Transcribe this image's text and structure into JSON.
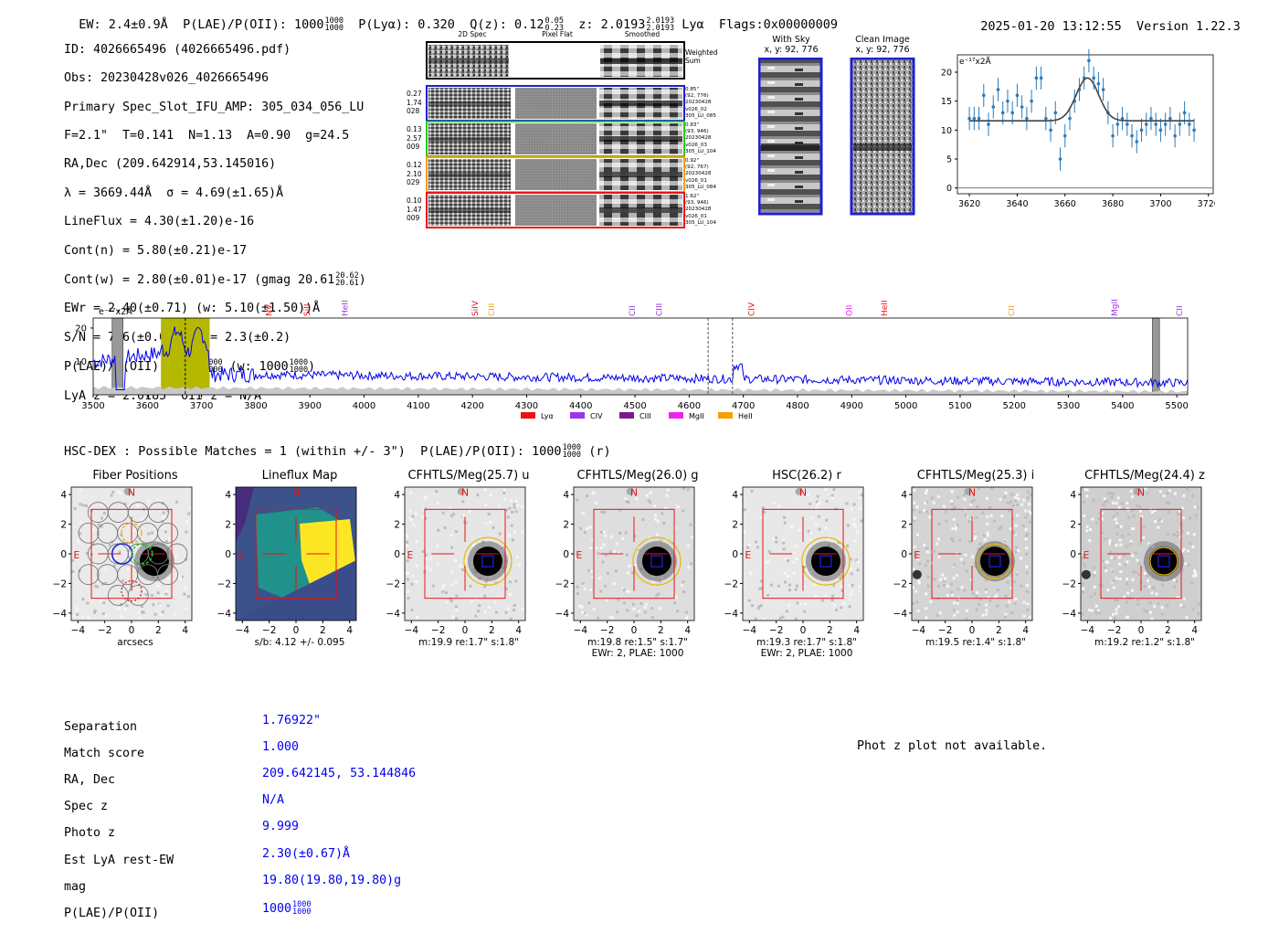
{
  "header": {
    "ew": "EW: 2.4±0.9Å",
    "plae_label": "P(LAE)/P(OII): 1000",
    "plae_sup": [
      "1000",
      "1000"
    ],
    "plya": "P(Lyα): 0.320",
    "qz_label": "Q(z): 0.12",
    "qz_sup": [
      "0.05",
      "0.23"
    ],
    "z_label": "z: 2.0193",
    "z_sup": [
      "2.0193",
      "2.0193"
    ],
    "z_line": "Lyα",
    "flags": "Flags:0x00000009",
    "timestamp": "2025-01-20 13:12:55",
    "version": "Version 1.22.3"
  },
  "info": {
    "id": "ID: 4026665496 (4026665496.pdf)",
    "obs": "Obs: 20230428v026_4026665496",
    "primary": "Primary Spec_Slot_IFU_AMP: 305_034_056_LU",
    "params": "F=2.1\"  T=0.141  N=1.13  A=0.90  g=24.5",
    "radec": "RA,Dec (209.642914,53.145016)",
    "lambda": "λ = 3669.44Å  σ = 4.69(±1.65)Å",
    "lineflux": "LineFlux = 4.30(±1.20)e-16",
    "contn": "Cont(n) = 5.80(±0.21)e-17",
    "contw": "Cont(w) = 2.80(±0.01)e-17 (gmag 20.61",
    "contw_sup": [
      "20.62",
      "20.61"
    ],
    "ewr": "EWr = 2.40(±0.71) (w: 5.10(±1.50))Å",
    "sn": "S/N = 7.6(±0.6)  χ² = 2.3(±0.2)",
    "plae": "P(LAE)/P(OII): 1000",
    "plae_sup": [
      "1000",
      "1000"
    ],
    "plae_w": "(w: 1000",
    "plae_w_sup": [
      "1000",
      "1000"
    ],
    "lyaz": "LyA z = 2.0185  OII z = N/A"
  },
  "cutouts": {
    "col_headers": [
      "2D Spec",
      "Pixel Flat",
      "Smoothed"
    ],
    "weighted_sum": [
      "Weighted",
      "Sum"
    ],
    "rows": [
      {
        "left": [
          "0.27",
          "1.74",
          "028"
        ],
        "right": [
          "0.85\"",
          "(92, 776)",
          "20230428",
          "v026_02",
          "305_LU_085"
        ],
        "color": "#1f1fd0"
      },
      {
        "left": [
          "0.13",
          "2.57",
          "009"
        ],
        "right": [
          "0.83\"",
          "(93, 946)",
          "20230428",
          "v026_03",
          "305_LU_104"
        ],
        "color": "#22cc22"
      },
      {
        "left": [
          "0.12",
          "2.10",
          "029"
        ],
        "right": [
          "0.92\"",
          "(92, 767)",
          "20230428",
          "v026_01",
          "305_LU_084"
        ],
        "color": "#f5a000"
      },
      {
        "left": [
          "0.10",
          "1.47",
          "009"
        ],
        "right": [
          "1.62\"",
          "(93, 946)",
          "20230428",
          "v026_01",
          "305_LU_104"
        ],
        "color": "#ee1111"
      }
    ],
    "with_sky": [
      "With Sky",
      "x, y: 92, 776"
    ],
    "clean_image": [
      "Clean Image",
      "x, y: 92, 776"
    ]
  },
  "zoom_chart": {
    "ylabel": "e⁻¹⁷x2Å",
    "xticks": [
      "3620",
      "3640",
      "3660",
      "3680",
      "3700",
      "3720"
    ],
    "yticks": [
      "0",
      "5",
      "10",
      "15",
      "20"
    ]
  },
  "spectrum": {
    "ylabel": "e⁻¹⁷x2Å",
    "xticks": [
      "3500",
      "3600",
      "3700",
      "3800",
      "3900",
      "4000",
      "4100",
      "4200",
      "4300",
      "4400",
      "4500",
      "4600",
      "4700",
      "4800",
      "4900",
      "5000",
      "5100",
      "5200",
      "5300",
      "5400",
      "5500"
    ],
    "yticks": [
      "10",
      "20"
    ],
    "line_labels": [
      {
        "name": "NV",
        "color": "#ee1111"
      },
      {
        "name": "SiII",
        "color": "#ee1111"
      },
      {
        "name": "HeII",
        "color": "#9933dd"
      },
      {
        "name": "SiIV",
        "color": "#ee1111"
      },
      {
        "name": "CIII",
        "color": "#f5a000"
      },
      {
        "name": "CII",
        "color": "#9933dd"
      },
      {
        "name": "CIII",
        "color": "#9933dd"
      },
      {
        "name": "CIV",
        "color": "#ee1111"
      },
      {
        "name": "OII",
        "color": "#ee22ee"
      },
      {
        "name": "HeII",
        "color": "#ee1111"
      },
      {
        "name": "CII",
        "color": "#f5a000"
      },
      {
        "name": "MgII",
        "color": "#9933dd"
      },
      {
        "name": "CII",
        "color": "#9933dd"
      }
    ],
    "legend": [
      {
        "name": "Lyα",
        "color": "#ee1111"
      },
      {
        "name": "CIV",
        "color": "#9933ee"
      },
      {
        "name": "CIII",
        "color": "#7a1a8a"
      },
      {
        "name": "MgII",
        "color": "#ee22ee"
      },
      {
        "name": "HeII",
        "color": "#f5a000"
      }
    ]
  },
  "chart_data": [
    {
      "type": "scatter",
      "title": "",
      "xlabel": "",
      "ylabel": "e⁻¹⁷x2Å",
      "xlim": [
        3615,
        3722
      ],
      "ylim": [
        -1,
        23
      ],
      "points_x": [
        3620,
        3622,
        3624,
        3626,
        3628,
        3630,
        3632,
        3634,
        3636,
        3638,
        3640,
        3642,
        3644,
        3646,
        3648,
        3650,
        3652,
        3654,
        3656,
        3658,
        3660,
        3662,
        3664,
        3666,
        3668,
        3670,
        3672,
        3674,
        3676,
        3678,
        3680,
        3682,
        3684,
        3686,
        3688,
        3690,
        3692,
        3694,
        3696,
        3698,
        3700,
        3702,
        3704,
        3706,
        3708,
        3710,
        3712,
        3714
      ],
      "points_y": [
        12,
        12,
        12,
        16,
        11,
        14,
        17,
        13,
        15,
        13,
        16,
        14,
        12,
        15,
        19,
        19,
        12,
        10,
        13,
        5,
        9,
        12,
        15,
        17,
        19,
        22,
        19,
        18,
        17,
        13,
        9,
        11,
        12,
        11,
        9,
        8,
        10,
        11,
        12,
        11,
        10,
        11,
        12,
        9,
        11,
        13,
        11,
        10
      ],
      "fit_y_baseline": 11.6,
      "fit_peak": {
        "x": 3669.4,
        "y": 19
      }
    },
    {
      "type": "line",
      "title": "",
      "xlabel": "",
      "ylabel": "e⁻¹⁷x2Å",
      "xlim": [
        3500,
        5520
      ],
      "ylim": [
        0,
        23
      ],
      "highlight_range": [
        3625,
        3715
      ],
      "marker_x": [
        3670,
        4635,
        4680
      ],
      "series": [
        {
          "name": "spectrum",
          "color": "#0000ee"
        }
      ]
    }
  ],
  "hsc": {
    "title": "HSC-DEX : Possible Matches = 1 (within +/- 3\")  P(LAE)/P(OII): 1000",
    "title_sup": [
      "1000",
      "1000"
    ],
    "title_tail": "(r)",
    "panels": [
      {
        "title": "Fiber Positions",
        "caption1": "arcsecs",
        "caption2": ""
      },
      {
        "title": "Lineflux Map",
        "caption1": "s/b: 4.12 +/- 0.095",
        "caption2": ""
      },
      {
        "title": "CFHTLS/Meg(25.7) u",
        "caption1": "m:19.9  re:1.7\"  s:1.8\"",
        "caption2": ""
      },
      {
        "title": "CFHTLS/Meg(26.0) g",
        "caption1": "m:19.8  re:1.5\"  s:1.7\"",
        "caption2": "EWr: 2, PLAE: 1000"
      },
      {
        "title": "HSC(26.2) r",
        "caption1": "m:19.3  re:1.7\"  s:1.8\"",
        "caption2": "EWr: 2, PLAE: 1000"
      },
      {
        "title": "CFHTLS/Meg(25.3) i",
        "caption1": "m:19.5  re:1.4\"  s:1.8\"",
        "caption2": ""
      },
      {
        "title": "CFHTLS/Meg(24.4) z",
        "caption1": "m:19.2  re:1.2\"  s:1.8\"",
        "caption2": ""
      }
    ],
    "axis_ticks": [
      "−4",
      "−2",
      "0",
      "2",
      "4"
    ],
    "label_n": "N",
    "label_e": "E"
  },
  "match_table": {
    "labels": [
      "Separation",
      "Match score",
      "RA, Dec",
      "Spec z",
      "Photo z",
      "Est LyA rest-EW",
      "mag",
      "P(LAE)/P(OII)"
    ],
    "values": [
      "1.76922\"",
      "1.000",
      "209.642145, 53.144846",
      "N/A",
      "9.999",
      "2.30(±0.67)Å",
      "19.80(19.80,19.80)g",
      "1000"
    ],
    "plae_sup": [
      "1000",
      "1000"
    ],
    "photz_msg": "Phot z plot not available."
  }
}
